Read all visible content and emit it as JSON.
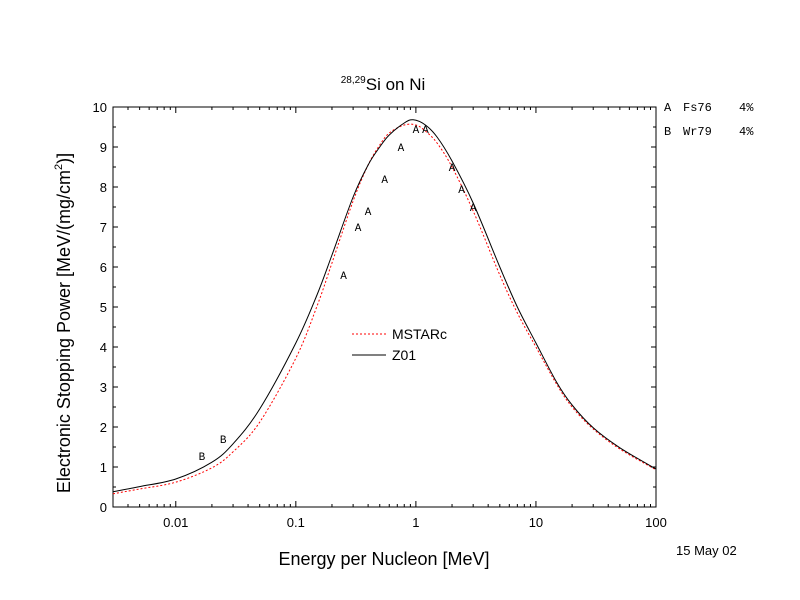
{
  "chart_data": {
    "type": "line",
    "title": {
      "pre": "28,29",
      "main": "Si on Ni"
    },
    "xlabel": "Energy per Nucleon [MeV]",
    "ylabel": {
      "main": "Electronic Stopping Power [MeV/(mg/cm",
      "sup": "2",
      "end": ")]"
    },
    "x_scale": "log",
    "xlim": [
      0.003,
      100
    ],
    "ylim": [
      0,
      10
    ],
    "x_ticks": [
      {
        "v": 0.01,
        "label": "0.01"
      },
      {
        "v": 0.1,
        "label": "0.1"
      },
      {
        "v": 1,
        "label": "1"
      },
      {
        "v": 10,
        "label": "10"
      },
      {
        "v": 100,
        "label": "100"
      }
    ],
    "y_ticks": [
      {
        "v": 0,
        "label": "0"
      },
      {
        "v": 1,
        "label": "1"
      },
      {
        "v": 2,
        "label": "2"
      },
      {
        "v": 3,
        "label": "3"
      },
      {
        "v": 4,
        "label": "4"
      },
      {
        "v": 5,
        "label": "5"
      },
      {
        "v": 6,
        "label": "6"
      },
      {
        "v": 7,
        "label": "7"
      },
      {
        "v": 8,
        "label": "8"
      },
      {
        "v": 9,
        "label": "9"
      },
      {
        "v": 10,
        "label": "10"
      }
    ],
    "legend_placement": "center",
    "series": [
      {
        "name": "MSTARc",
        "color": "#ff0000",
        "dash": "dotted",
        "x": [
          0.003,
          0.005,
          0.01,
          0.02,
          0.03,
          0.05,
          0.1,
          0.15,
          0.2,
          0.3,
          0.4,
          0.5,
          0.6,
          0.8,
          1.0,
          1.2,
          1.5,
          2.0,
          3.0,
          5.0,
          7.0,
          10,
          15,
          20,
          30,
          50,
          100
        ],
        "y": [
          0.33,
          0.45,
          0.62,
          0.98,
          1.38,
          2.12,
          3.72,
          5.02,
          6.1,
          7.65,
          8.55,
          9.05,
          9.35,
          9.55,
          9.55,
          9.4,
          9.1,
          8.5,
          7.4,
          5.8,
          4.85,
          4.0,
          3.05,
          2.5,
          1.95,
          1.45,
          0.93
        ]
      },
      {
        "name": "Z01",
        "color": "#000000",
        "dash": "solid",
        "x": [
          0.003,
          0.005,
          0.01,
          0.02,
          0.03,
          0.05,
          0.1,
          0.15,
          0.2,
          0.3,
          0.4,
          0.5,
          0.6,
          0.8,
          0.95,
          1.2,
          1.5,
          2.0,
          3.0,
          5.0,
          7.0,
          10,
          15,
          20,
          30,
          50,
          100
        ],
        "y": [
          0.38,
          0.51,
          0.7,
          1.12,
          1.58,
          2.45,
          4.1,
          5.3,
          6.3,
          7.75,
          8.55,
          9.0,
          9.3,
          9.6,
          9.68,
          9.55,
          9.25,
          8.65,
          7.6,
          6.0,
          5.0,
          4.1,
          3.1,
          2.55,
          1.98,
          1.48,
          0.95
        ]
      }
    ],
    "measurements": [
      {
        "set": "A",
        "points": [
          {
            "x": 0.25,
            "y": 5.8
          },
          {
            "x": 0.33,
            "y": 7.0
          },
          {
            "x": 0.4,
            "y": 7.4
          },
          {
            "x": 0.55,
            "y": 8.2
          },
          {
            "x": 0.75,
            "y": 9.0
          },
          {
            "x": 1.0,
            "y": 9.45
          },
          {
            "x": 1.2,
            "y": 9.45
          },
          {
            "x": 2.0,
            "y": 8.5
          },
          {
            "x": 2.4,
            "y": 7.95
          },
          {
            "x": 3.0,
            "y": 7.5
          }
        ]
      },
      {
        "set": "B",
        "points": [
          {
            "x": 0.0165,
            "y": 1.27
          },
          {
            "x": 0.0248,
            "y": 1.7
          }
        ]
      }
    ],
    "references": [
      {
        "letter": "A",
        "name": "Fs76",
        "pct": "4%"
      },
      {
        "letter": "B",
        "name": "Wr79",
        "pct": "4%"
      }
    ],
    "date": "15 May 02"
  }
}
